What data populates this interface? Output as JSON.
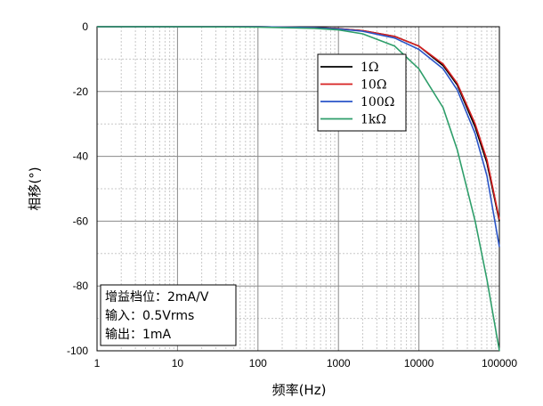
{
  "chart_data": {
    "type": "line",
    "xlabel": "频率(Hz)",
    "ylabel": "相移(°)",
    "x_scale": "log",
    "xlim": [
      1,
      100000
    ],
    "ylim": [
      -100,
      0
    ],
    "x_ticks": [
      "1",
      "10",
      "100",
      "1000",
      "10000",
      "100000"
    ],
    "y_ticks": [
      "0",
      "-20",
      "-40",
      "-60",
      "-80",
      "-100"
    ],
    "grid": true,
    "legend_position": "top-right",
    "series": [
      {
        "name": "1Ω",
        "color": "#000000",
        "x": [
          1,
          10,
          100,
          500,
          1000,
          2000,
          5000,
          10000,
          20000,
          30000,
          50000,
          70000,
          100000
        ],
        "y": [
          0,
          0,
          0,
          -0.3,
          -0.6,
          -1.2,
          -3,
          -6,
          -12,
          -18,
          -31,
          -42,
          -60
        ]
      },
      {
        "name": "10Ω",
        "color": "#d62020",
        "x": [
          1,
          10,
          100,
          500,
          1000,
          2000,
          5000,
          10000,
          20000,
          30000,
          50000,
          70000,
          100000
        ],
        "y": [
          0,
          0,
          0,
          -0.3,
          -0.6,
          -1.2,
          -3,
          -6,
          -11.5,
          -17.5,
          -30,
          -41,
          -59.5
        ]
      },
      {
        "name": "100Ω",
        "color": "#2a55c8",
        "x": [
          1,
          10,
          100,
          500,
          1000,
          2000,
          5000,
          10000,
          20000,
          30000,
          50000,
          70000,
          100000
        ],
        "y": [
          0,
          0,
          0,
          -0.3,
          -0.7,
          -1.4,
          -3.5,
          -7,
          -13,
          -19.5,
          -33,
          -46,
          -68
        ]
      },
      {
        "name": "1kΩ",
        "color": "#2e9e6a",
        "x": [
          1,
          10,
          100,
          500,
          1000,
          2000,
          5000,
          10000,
          20000,
          30000,
          50000,
          70000,
          100000
        ],
        "y": [
          0,
          0,
          -0.1,
          -0.5,
          -1,
          -2.2,
          -6,
          -13,
          -25,
          -38,
          -60,
          -78,
          -100
        ]
      }
    ],
    "annotation": {
      "lines": [
        "增益档位：2mA/V",
        "输入：0.5Vrms",
        "输出：1mA"
      ]
    }
  }
}
